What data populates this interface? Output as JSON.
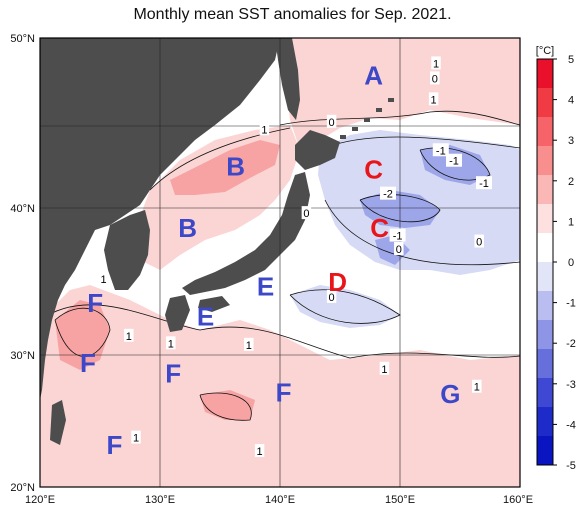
{
  "title": "Monthly mean SST anomalies for Sep. 2021.",
  "lon_ticks": [
    "120°E",
    "130°E",
    "140°E",
    "150°E",
    "160°E"
  ],
  "lat_ticks": [
    "50°N",
    "40°N",
    "30°N",
    "20°N"
  ],
  "colorbar": {
    "unit": "[°C]",
    "ticks": [
      "5",
      "4",
      "3",
      "2",
      "1",
      "0",
      "-1",
      "-2",
      "-3",
      "-4",
      "-5"
    ],
    "colors": [
      "#e8102a",
      "#f03a44",
      "#f6646a",
      "#f98e8e",
      "#fbb6b6",
      "#fde0e0",
      "#ffffff",
      "#e2e4f8",
      "#b9bdf0",
      "#8f95e6",
      "#676fdc",
      "#3e48d2",
      "#1f2bc8",
      "#0a14c0"
    ]
  },
  "colors": {
    "land": "#4d4d4d",
    "warm_strong": "#f7a3a3",
    "warm_light": "#fbd4d4",
    "cool_light": "#d6daf4",
    "cool_strong": "#9ea6ea",
    "region_warm": "#e8161b",
    "region_cool": "#3c48c8"
  },
  "regions": [
    {
      "code": "A",
      "lon": 147.8,
      "lat": 47.5,
      "type": "cool"
    },
    {
      "code": "B",
      "lon": 136.3,
      "lat": 41.4,
      "type": "cool"
    },
    {
      "code": "B",
      "lon": 132.3,
      "lat": 37.3,
      "type": "cool"
    },
    {
      "code": "C",
      "lon": 147.8,
      "lat": 41.2,
      "type": "warm"
    },
    {
      "code": "C",
      "lon": 148.3,
      "lat": 37.3,
      "type": "warm"
    },
    {
      "code": "D",
      "lon": 144.8,
      "lat": 33.7,
      "type": "warm"
    },
    {
      "code": "E",
      "lon": 138.8,
      "lat": 33.4,
      "type": "cool"
    },
    {
      "code": "E",
      "lon": 133.8,
      "lat": 31.4,
      "type": "cool"
    },
    {
      "code": "F",
      "lon": 124.6,
      "lat": 32.3,
      "type": "cool"
    },
    {
      "code": "F",
      "lon": 124.0,
      "lat": 28.3,
      "type": "cool"
    },
    {
      "code": "F",
      "lon": 131.1,
      "lat": 27.6,
      "type": "cool"
    },
    {
      "code": "F",
      "lon": 140.3,
      "lat": 26.3,
      "type": "cool"
    },
    {
      "code": "F",
      "lon": 126.2,
      "lat": 22.8,
      "type": "cool"
    },
    {
      "code": "G",
      "lon": 154.2,
      "lat": 26.2,
      "type": "cool"
    }
  ],
  "contour_labels": [
    {
      "text": "1",
      "lon": 153.0,
      "lat": 48.3
    },
    {
      "text": "0",
      "lon": 152.9,
      "lat": 47.3
    },
    {
      "text": "1",
      "lon": 152.8,
      "lat": 45.9
    },
    {
      "text": "1",
      "lon": 138.7,
      "lat": 43.9
    },
    {
      "text": "0",
      "lon": 144.3,
      "lat": 44.4
    },
    {
      "text": "-1",
      "lon": 153.4,
      "lat": 42.5
    },
    {
      "text": "-1",
      "lon": 154.5,
      "lat": 41.8
    },
    {
      "text": "-1",
      "lon": 157.0,
      "lat": 40.3
    },
    {
      "text": "-2",
      "lon": 149.0,
      "lat": 39.6
    },
    {
      "text": "0",
      "lon": 142.2,
      "lat": 38.3
    },
    {
      "text": "-1",
      "lon": 149.8,
      "lat": 36.8
    },
    {
      "text": "0",
      "lon": 149.9,
      "lat": 35.9
    },
    {
      "text": "0",
      "lon": 156.6,
      "lat": 36.4
    },
    {
      "text": "1",
      "lon": 125.3,
      "lat": 33.9
    },
    {
      "text": "0",
      "lon": 144.3,
      "lat": 32.7
    },
    {
      "text": "1",
      "lon": 127.4,
      "lat": 30.1
    },
    {
      "text": "1",
      "lon": 130.9,
      "lat": 29.6
    },
    {
      "text": "1",
      "lon": 137.4,
      "lat": 29.5
    },
    {
      "text": "1",
      "lon": 148.7,
      "lat": 27.9
    },
    {
      "text": "1",
      "lon": 156.4,
      "lat": 26.7
    },
    {
      "text": "1",
      "lon": 128.0,
      "lat": 23.3
    },
    {
      "text": "1",
      "lon": 138.3,
      "lat": 22.4
    }
  ]
}
